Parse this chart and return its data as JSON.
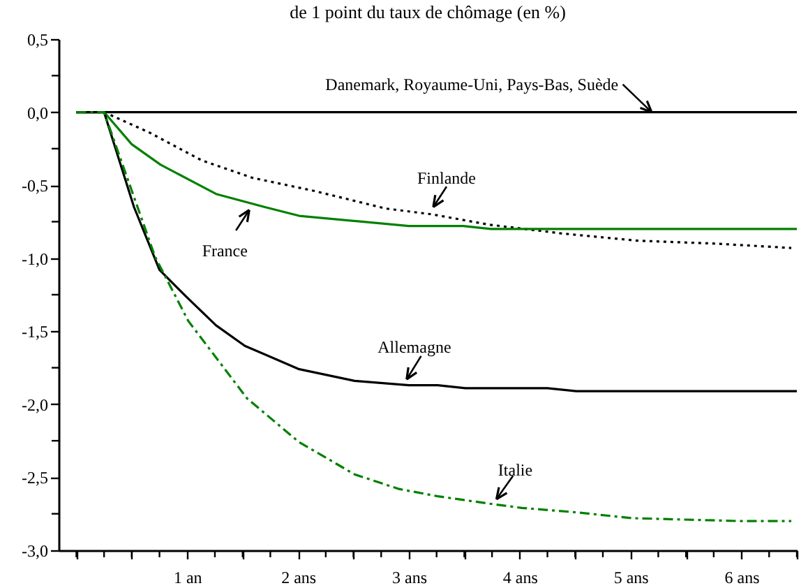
{
  "chart_data": {
    "type": "line",
    "title": "de 1 point du taux de chômage (en %)",
    "xlim": [
      -0.16,
      6.5
    ],
    "ylim": [
      -3,
      0.5
    ],
    "xticks": [
      {
        "value": 0,
        "label": null
      },
      {
        "value": 0.25,
        "label": null
      },
      {
        "value": 0.5,
        "label": null
      },
      {
        "value": 0.75,
        "label": null
      },
      {
        "value": 1,
        "label": "1 an"
      },
      {
        "value": 1.25,
        "label": null
      },
      {
        "value": 1.5,
        "label": null
      },
      {
        "value": 1.75,
        "label": null
      },
      {
        "value": 2,
        "label": "2 ans"
      },
      {
        "value": 2.25,
        "label": null
      },
      {
        "value": 2.5,
        "label": null
      },
      {
        "value": 2.75,
        "label": null
      },
      {
        "value": 3,
        "label": "3 ans"
      },
      {
        "value": 3.25,
        "label": null
      },
      {
        "value": 3.5,
        "label": null
      },
      {
        "value": 3.75,
        "label": null
      },
      {
        "value": 4,
        "label": "4 ans"
      },
      {
        "value": 4.25,
        "label": null
      },
      {
        "value": 4.5,
        "label": null
      },
      {
        "value": 4.75,
        "label": null
      },
      {
        "value": 5,
        "label": "5 ans"
      },
      {
        "value": 5.25,
        "label": null
      },
      {
        "value": 5.5,
        "label": null
      },
      {
        "value": 5.75,
        "label": null
      },
      {
        "value": 6,
        "label": "6 ans"
      },
      {
        "value": 6.25,
        "label": null
      },
      {
        "value": 6.5,
        "label": null
      }
    ],
    "yticks": [
      {
        "value": 0.5,
        "label": "0,5"
      },
      {
        "value": 0.25,
        "label": null
      },
      {
        "value": 0,
        "label": "0,0"
      },
      {
        "value": -0.25,
        "label": null
      },
      {
        "value": -0.5,
        "label": "-0,5"
      },
      {
        "value": -0.75,
        "label": null
      },
      {
        "value": -1,
        "label": "-1,0"
      },
      {
        "value": -1.25,
        "label": null
      },
      {
        "value": -1.5,
        "label": "-1,5"
      },
      {
        "value": -1.75,
        "label": null
      },
      {
        "value": -2,
        "label": "-2,0"
      },
      {
        "value": -2.25,
        "label": null
      },
      {
        "value": -2.5,
        "label": "-2,5"
      },
      {
        "value": -2.75,
        "label": null
      },
      {
        "value": -3,
        "label": "-3,0"
      }
    ],
    "grid": false,
    "marker": "none",
    "series": [
      {
        "color": "#000000",
        "line_style": "solid",
        "x": [
          0,
          6.5
        ],
        "values": [
          0,
          0
        ]
      },
      {
        "color": "#000000",
        "line_style": "dotted",
        "x": [
          0,
          0.25,
          0.66,
          1.13,
          1.59,
          2.15,
          2.79,
          3.21,
          3.72,
          4.37,
          5.06,
          5.76,
          6.45
        ],
        "values": [
          0,
          0,
          -0.14,
          -0.33,
          -0.45,
          -0.54,
          -0.66,
          -0.7,
          -0.77,
          -0.83,
          -0.88,
          -0.9,
          -0.93
        ]
      },
      {
        "color": "#008000",
        "line_style": "solid",
        "x": [
          0,
          0.25,
          0.5,
          0.76,
          1.26,
          1.7,
          2.01,
          3.0,
          3.49,
          3.74,
          6.5
        ],
        "values": [
          0,
          0,
          -0.22,
          -0.36,
          -0.56,
          -0.65,
          -0.71,
          -0.78,
          -0.78,
          -0.8,
          -0.8
        ]
      },
      {
        "color": "#000000",
        "line_style": "solid",
        "x": [
          0,
          0.25,
          0.52,
          0.75,
          1.0,
          1.26,
          1.52,
          2.01,
          2.51,
          3.0,
          3.26,
          3.51,
          4.25,
          4.51,
          6.5
        ],
        "values": [
          0,
          0,
          -0.65,
          -1.08,
          -1.27,
          -1.46,
          -1.6,
          -1.76,
          -1.84,
          -1.87,
          -1.87,
          -1.89,
          -1.89,
          -1.91,
          -1.91
        ]
      },
      {
        "color": "#008000",
        "line_style": "dashdot",
        "x": [
          0,
          0.25,
          0.71,
          1.01,
          1.54,
          2.01,
          2.51,
          2.91,
          3.26,
          3.72,
          4.02,
          4.51,
          5.01,
          5.99,
          6.45
        ],
        "values": [
          0,
          0,
          -0.99,
          -1.43,
          -1.96,
          -2.26,
          -2.48,
          -2.58,
          -2.63,
          -2.68,
          -2.71,
          -2.74,
          -2.78,
          -2.8,
          -2.8
        ]
      }
    ],
    "annotations": [
      {
        "text": "Danemark, Royaume-Uni, Pays-Bas, Suède",
        "x": 5.19,
        "y": 0
      },
      {
        "text": "Finlande",
        "x": 3.22,
        "y": -0.65
      },
      {
        "text": "France",
        "x": 1.56,
        "y": -0.67
      },
      {
        "text": "Allemagne",
        "x": 2.98,
        "y": -1.83
      },
      {
        "text": "Italie",
        "x": 3.79,
        "y": -2.65
      }
    ]
  }
}
